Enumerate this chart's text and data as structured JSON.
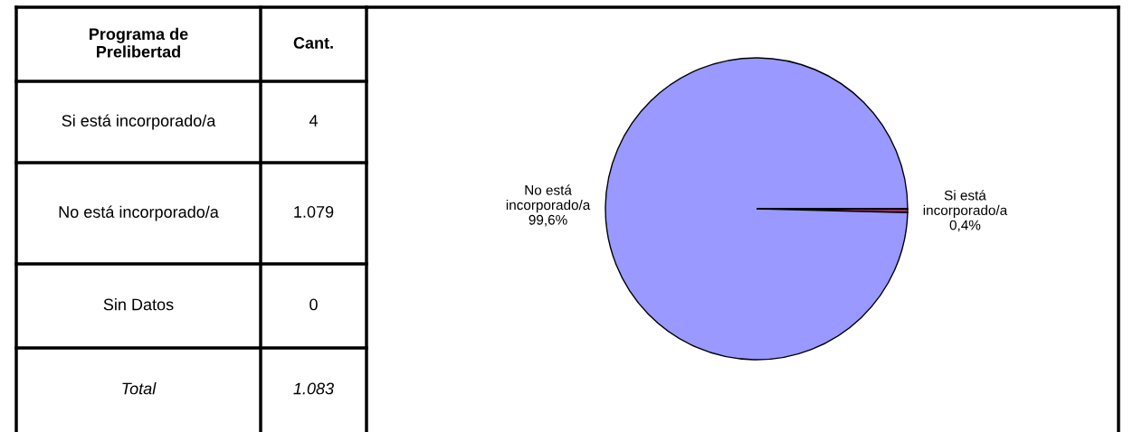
{
  "chart_data": {
    "type": "pie",
    "categories": [
      "Si está incorporado/a",
      "No está incorporado/a",
      "Sin Datos"
    ],
    "values": [
      0.4,
      99.6,
      0
    ],
    "value_labels": [
      "0,4%",
      "99,6%",
      null
    ],
    "colors": [
      "#993366",
      "#9999ff",
      "#ffffcc"
    ],
    "annotations": [
      "Programa de Prelibertad",
      "Cant.",
      "4",
      "1.079",
      "0",
      "Total",
      "1.083"
    ]
  }
}
